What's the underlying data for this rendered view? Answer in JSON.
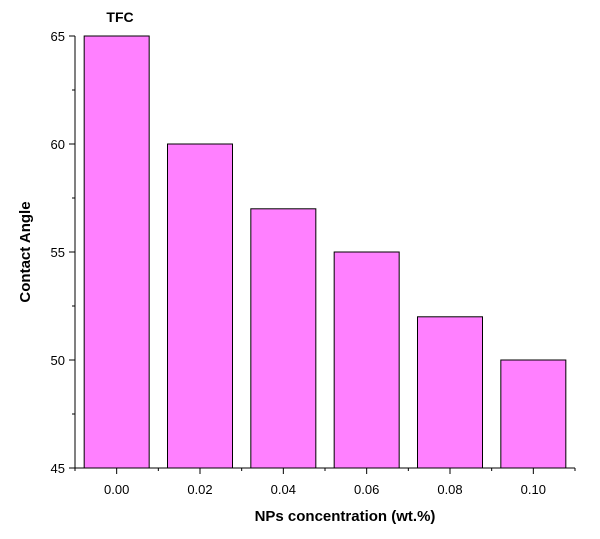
{
  "chart_data": {
    "type": "bar",
    "categories": [
      "0.00",
      "0.02",
      "0.04",
      "0.06",
      "0.08",
      "0.10"
    ],
    "values": [
      65,
      60,
      57,
      55,
      52,
      50
    ],
    "xlabel": "NPs concentration (wt.%)",
    "ylabel": "Contact Angle",
    "ylim": [
      45,
      65
    ],
    "yticks": [
      "45",
      "50",
      "55",
      "60",
      "65"
    ],
    "annotation": "TFC",
    "bar_color": "#ff80ff",
    "bar_edge_color": "#000000",
    "grid": false
  }
}
